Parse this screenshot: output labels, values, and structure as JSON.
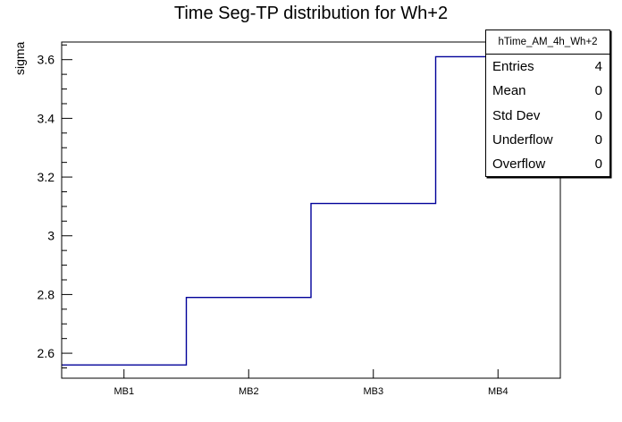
{
  "chart_data": {
    "type": "step",
    "title": "Time Seg-TP distribution for Wh+2",
    "xlabel": "",
    "ylabel": "sigma",
    "categories": [
      "MB1",
      "MB2",
      "MB3",
      "MB4"
    ],
    "values": [
      2.56,
      2.79,
      3.11,
      3.61
    ],
    "ylim": [
      2.515,
      3.66
    ],
    "y_major_ticks": [
      2.6,
      2.8,
      3,
      3.2,
      3.4,
      3.6
    ],
    "y_minor_step": 0.05,
    "grid": false,
    "legend_position": "none",
    "line_color": "#000099",
    "frame_color": "#000000",
    "background_color": "#ffffff"
  },
  "stats_box": {
    "header": "hTime_AM_4h_Wh+2",
    "rows": [
      {
        "label": "Entries",
        "value": "4"
      },
      {
        "label": "Mean",
        "value": "0"
      },
      {
        "label": "Std Dev",
        "value": "0"
      },
      {
        "label": "Underflow",
        "value": "0"
      },
      {
        "label": "Overflow",
        "value": "0"
      }
    ]
  }
}
